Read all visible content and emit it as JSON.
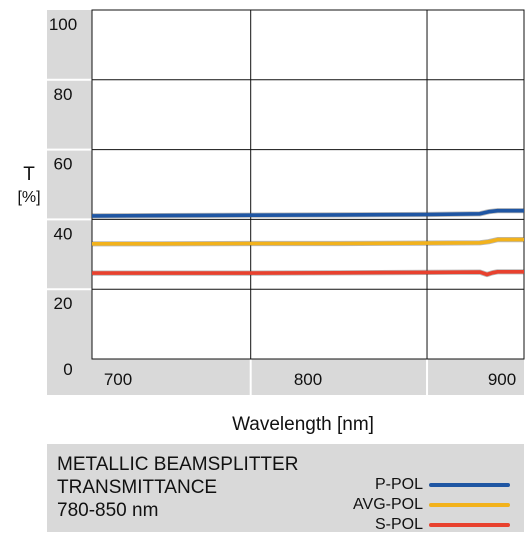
{
  "chart_data": {
    "type": "line",
    "ylabel": "T",
    "ylabel_unit": "[%]",
    "xlabel": "Wavelength [nm]",
    "xlim": [
      660,
      905
    ],
    "ylim": [
      0,
      100
    ],
    "x_ticks": [
      700,
      800,
      900
    ],
    "y_ticks": [
      0,
      20,
      40,
      60,
      80,
      100
    ],
    "grid": true,
    "series": [
      {
        "name": "P-POL",
        "color": "#1f56a3",
        "x": [
          660,
          700,
          750,
          800,
          850,
          880,
          885,
          890,
          905
        ],
        "y": [
          41.0,
          41.1,
          41.2,
          41.3,
          41.4,
          41.6,
          42.2,
          42.5,
          42.5
        ]
      },
      {
        "name": "AVG-POL",
        "color": "#f2b21c",
        "x": [
          660,
          700,
          750,
          800,
          850,
          880,
          885,
          890,
          905
        ],
        "y": [
          33.0,
          33.0,
          33.1,
          33.1,
          33.2,
          33.3,
          33.6,
          34.2,
          34.2
        ]
      },
      {
        "name": "S-POL",
        "color": "#e8412e",
        "x": [
          660,
          700,
          750,
          800,
          850,
          880,
          884,
          887,
          890,
          905
        ],
        "y": [
          24.6,
          24.6,
          24.6,
          24.7,
          24.8,
          24.9,
          24.2,
          24.7,
          25.0,
          25.0
        ]
      }
    ],
    "legend": {
      "title_lines": [
        "METALLIC BEAMSPLITTER",
        "TRANSMITTANCE",
        "780-850 nm"
      ],
      "entries": [
        "P-POL",
        "AVG-POL",
        "S-POL"
      ],
      "placement": "bottom"
    }
  },
  "colors": {
    "axis_band": "#d9d9d9",
    "grid": "#111111"
  }
}
